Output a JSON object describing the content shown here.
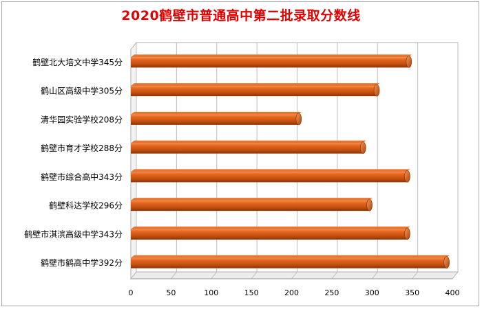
{
  "chart_data": {
    "type": "bar",
    "orientation": "horizontal",
    "title": "2020鹤壁市普通高中第二批录取分数线",
    "categories": [
      "鹤壁北大培文中学345分",
      "鹤山区高级中学305分",
      "清华园实验学校208分",
      "鹤壁市育才学校288分",
      "鹤壁市综合高中343分",
      "鹤壁科达学校296分",
      "鹤壁市淇滨高级中学343分",
      "鹤壁市鹤高中学392分"
    ],
    "values": [
      345,
      305,
      208,
      288,
      343,
      296,
      343,
      392
    ],
    "xlim": [
      0,
      400
    ],
    "xticks": [
      "0",
      "50",
      "100",
      "150",
      "200",
      "250",
      "300",
      "350",
      "400"
    ],
    "grid": true,
    "bar_color": "#c8500a",
    "title_color": "#e00000",
    "style": "3d"
  }
}
